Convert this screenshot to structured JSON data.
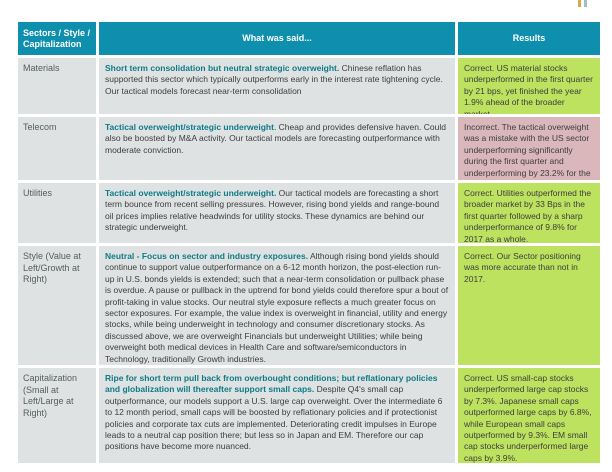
{
  "logo": {
    "bar1_color": "#d9a94f",
    "bar2_color": "#9fbccd"
  },
  "colors": {
    "header_bg": "#0e8fad",
    "header_text": "#ffffff",
    "cell_bg": "#dee2e2",
    "lead_text": "#0f7b86",
    "body_text": "#3e3e3e",
    "correct_bg": "#bce25f",
    "incorrect_bg": "#d9b7ba"
  },
  "table": {
    "headers": {
      "col1": "Sectors / Style / Capitalization",
      "col2": "What was said...",
      "col3": "Results"
    },
    "rows": [
      {
        "category": "Materials",
        "said_lead": "Short term consolidation but neutral strategic overweight.",
        "said_body": " Chinese reflation has supported this sector which typically outperforms early in the interest rate tightening cycle.  Our tactical models forecast near-term consolidation",
        "result": "Correct. US material stocks underperformed in the first quarter by 21 bps, yet finished the year 1.9% ahead of the broader market.",
        "result_status": "correct"
      },
      {
        "category": "Telecom",
        "said_lead": "Tactical overweight/strategic underweight",
        "said_body": ". Cheap and provides defensive haven. Could also be boosted by M&A activity.  Our tactical models are forecasting outperformance with moderate conviction.",
        "result": "Incorrect. The tactical overweight was a mistake with the US sector underperforming significantly during the first quarter and underperforming by 23.2% for the year.",
        "result_status": "incorrect"
      },
      {
        "category": "Utilities",
        "said_lead": "Tactical overweight/strategic underweight.",
        "said_body": "  Our tactical models are forecasting a short term bounce from recent selling pressures.  However, rising bond yields and range-bound oil prices implies relative headwinds for utility stocks.  These dynamics are behind our strategic underweight.",
        "result": "Correct. Utilities outperformed the broader market by 33 Bps in the first quarter followed by a sharp underperformance of 9.8% for 2017 as a whole.",
        "result_status": "correct"
      },
      {
        "category": "Style (Value at Left/Growth at Right)",
        "said_lead": "Neutral - Focus on sector and industry exposures.",
        "said_body": " Although rising bond yields should continue to support value outperformance on a 6-12 month horizon, the post-election run-up in U.S. bonds yields is extended; such that a near-term consolidation or pullback phase is overdue. A pause or pullback in the uptrend for bond yields could therefore spur a bout of profit-taking in value stocks. Our neutral style exposure reflects a much greater focus on sector exposures.  For example, the value index is overweight in financial, utility and energy stocks, while being underweight in technology and consumer discretionary stocks. As discussed above, we are overweight Financials but underweight Utilities; while being overweight both medical devices in Health Care and software/semiconductors in Technology, traditionally Growth industries.",
        "result": "Correct. Our Sector positioning was more accurate than not in 2017.",
        "result_status": "correct"
      },
      {
        "category": "Capitalization (Small at Left/Large at Right)",
        "said_lead": "Ripe for short term pull back from overbought conditions; but reflationary policies and globalization will thereafter support small caps.",
        "said_body": " Despite Q4's small cap outperformance, our models support a U.S. large cap overweight. Over the intermediate 6 to 12 month period, small caps will be boosted by reflationary policies and if protectionist policies and corporate tax cuts are implemented. Deteriorating credit impulses in Europe leads to a neutral cap position there; but less so in Japan and EM.  Therefore our cap positions have become more nuanced.",
        "result": "Correct. US small-cap stocks underperformed large cap stocks by 7.3%. Japanese small caps outperformed large caps by 6.8%, while European small caps outperformed by 9.3%. EM small cap stocks underperformed large caps by 3.9%.",
        "result_status": "correct"
      }
    ]
  }
}
